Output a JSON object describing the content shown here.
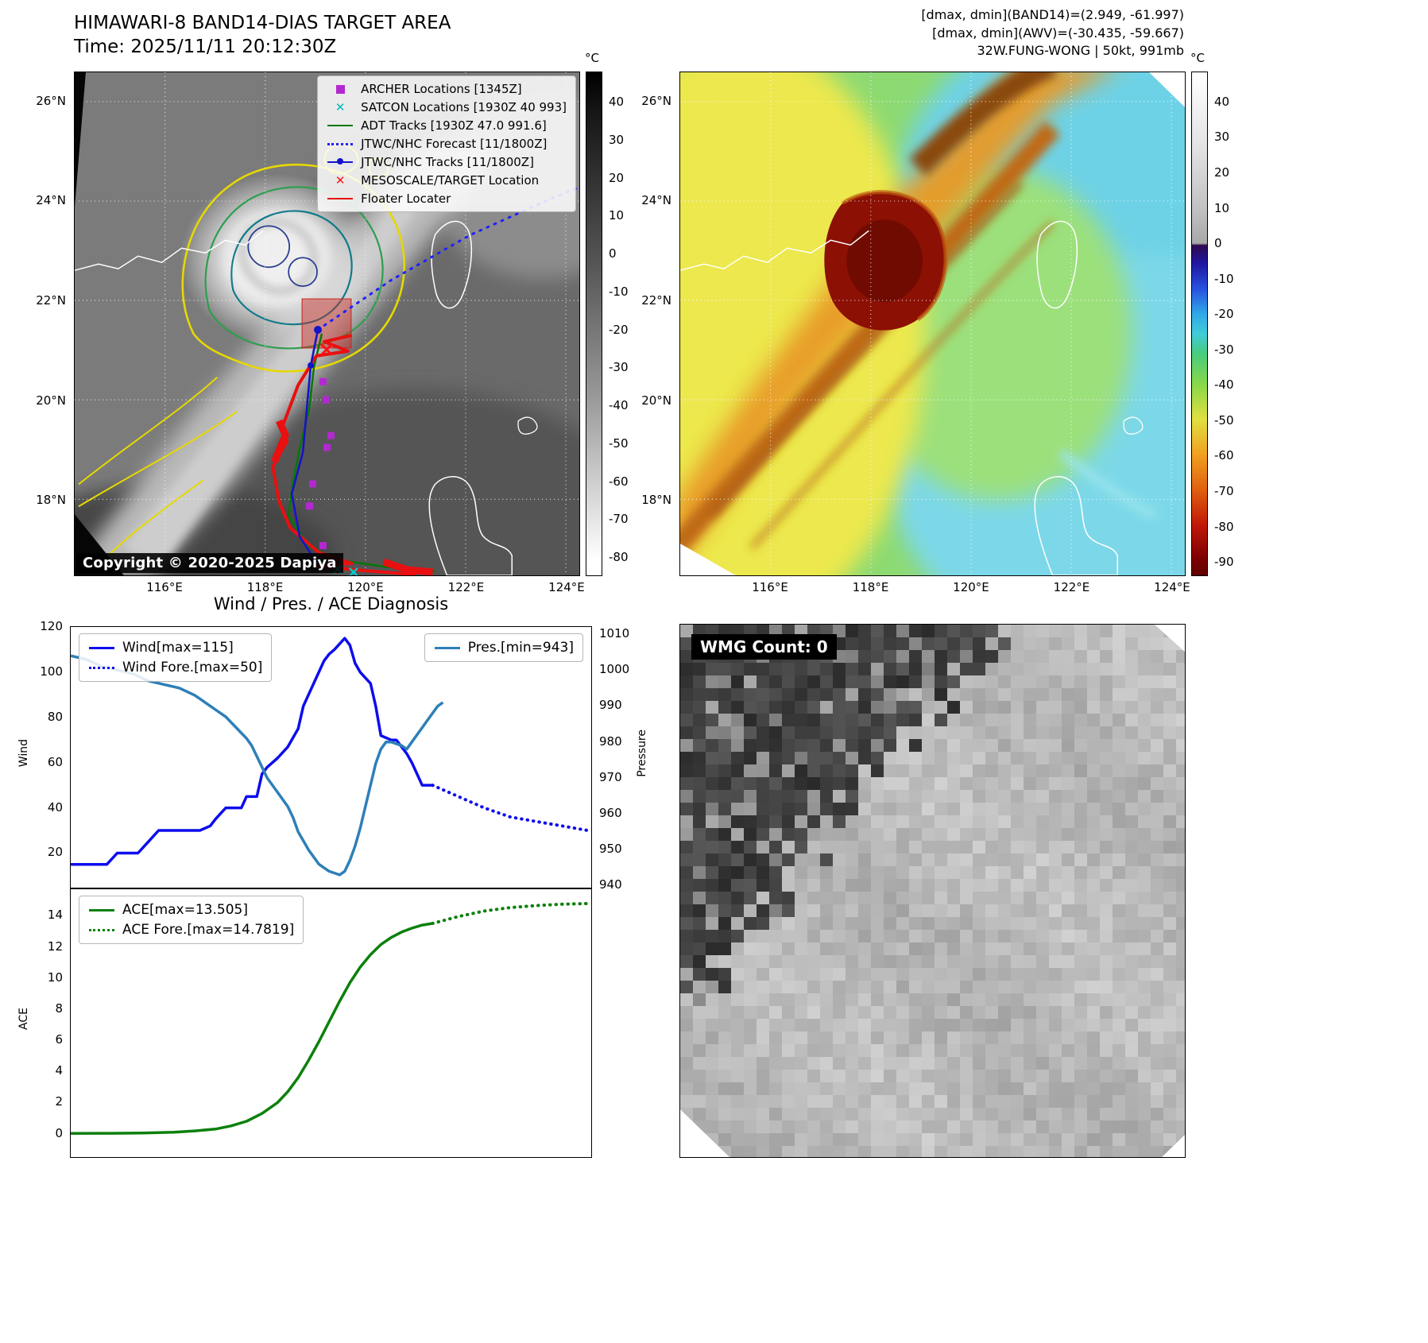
{
  "panel_tl": {
    "title": "HIMAWARI-8 BAND14-DIAS TARGET AREA",
    "subtitle": "Time: 2025/11/11 20:12:30Z",
    "copyright": "Copyright © 2020-2025 Dapiya",
    "colorbar": {
      "unit": "°C",
      "ticks": [
        "40",
        "30",
        "20",
        "10",
        "0",
        "-10",
        "-20",
        "-30",
        "-40",
        "-50",
        "-60",
        "-70",
        "-80"
      ]
    },
    "yticks": [
      "26°N",
      "24°N",
      "22°N",
      "20°N",
      "18°N"
    ],
    "xticks": [
      "116°E",
      "118°E",
      "120°E",
      "122°E",
      "124°E"
    ],
    "legend": [
      {
        "label": "ARCHER Locations [1345Z]",
        "marker": "square",
        "color": "#b428d2"
      },
      {
        "label": "SATCON Locations [1930Z 40 993]",
        "marker": "x",
        "color": "#00b8b8"
      },
      {
        "label": "ADT Tracks [1930Z 47.0 991.6]",
        "marker": "line",
        "color": "#067806"
      },
      {
        "label": "JTWC/NHC Forecast [11/1800Z]",
        "marker": "dotted-line",
        "color": "#2020ff"
      },
      {
        "label": "JTWC/NHC Tracks [11/1800Z]",
        "marker": "line-dot",
        "color": "#1414c8"
      },
      {
        "label": "MESOSCALE/TARGET Location",
        "marker": "x",
        "color": "#ff1010"
      },
      {
        "label": "Floater Locater",
        "marker": "line",
        "color": "#e81010"
      }
    ]
  },
  "panel_tr": {
    "header_lines": [
      "[dmax, dmin](BAND14)=(2.949, -61.997)",
      "[dmax, dmin](AWV)=(-30.435, -59.667)",
      "32W.FUNG-WONG | 50kt, 991mb"
    ],
    "colorbar": {
      "unit": "°C",
      "ticks": [
        "40",
        "30",
        "20",
        "10",
        "0",
        "-10",
        "-20",
        "-30",
        "-40",
        "-50",
        "-60",
        "-70",
        "-80",
        "-90"
      ]
    },
    "yticks": [
      "26°N",
      "24°N",
      "22°N",
      "20°N",
      "18°N"
    ],
    "xticks": [
      "116°E",
      "118°E",
      "120°E",
      "122°E",
      "124°E"
    ]
  },
  "panel_br": {
    "badge": "WMG Count: 0"
  },
  "chart_data": [
    {
      "type": "line",
      "title": "Wind / Pres. / ACE Diagnosis",
      "xlabel": "",
      "ylabel_left": "Wind",
      "ylabel_right": "Pressure",
      "xlim": [
        0,
        101
      ],
      "ylim_left": [
        4,
        120
      ],
      "ylim_right": [
        939,
        1012
      ],
      "grid": false,
      "yticks_left": [
        "120",
        "100",
        "80",
        "60",
        "40",
        "20"
      ],
      "yticks_right": [
        "1010",
        "1000",
        "990",
        "980",
        "970",
        "960",
        "950",
        "940"
      ],
      "series": [
        {
          "name": "Wind[max=115]",
          "color": "#0d0dee",
          "style": "solid",
          "axis": "left",
          "lw": 3.5,
          "x": [
            0,
            4,
            7,
            9,
            13,
            15,
            17,
            25,
            27,
            28,
            30,
            33,
            34,
            36,
            37,
            38,
            40,
            42,
            44,
            45,
            46,
            47,
            48,
            49,
            50,
            51,
            53,
            54,
            55,
            56,
            58,
            59,
            60,
            62,
            63,
            65,
            66,
            68,
            70
          ],
          "y": [
            15,
            15,
            15,
            20,
            20,
            25,
            30,
            30,
            32,
            35,
            40,
            40,
            45,
            45,
            55,
            58,
            62,
            67,
            75,
            85,
            90,
            95,
            100,
            105,
            108,
            110,
            115,
            112,
            104,
            100,
            95,
            85,
            72,
            70,
            70,
            64,
            60,
            50,
            50
          ]
        },
        {
          "name": "Wind Fore.[max=50]",
          "color": "#0d0dee",
          "style": "dotted",
          "axis": "left",
          "lw": 4,
          "x": [
            70,
            75,
            80,
            85,
            90,
            95,
            100
          ],
          "y": [
            50,
            45,
            40,
            36,
            34,
            32,
            30
          ]
        },
        {
          "name": "Pres.[min=943]",
          "color": "#2e7fb8",
          "style": "solid",
          "axis": "right",
          "lw": 3.5,
          "x": [
            0,
            3,
            6,
            9,
            12,
            15,
            18,
            21,
            24,
            26,
            28,
            30,
            32,
            34,
            35,
            36,
            37,
            38,
            40,
            42,
            43,
            44,
            46,
            48,
            50,
            52,
            53,
            54,
            55,
            56,
            57,
            58,
            59,
            60,
            61,
            62,
            64,
            65,
            66,
            68,
            69,
            70,
            71,
            72
          ],
          "y": [
            1004,
            1003,
            1001,
            1000,
            999,
            997,
            996,
            995,
            993,
            991,
            989,
            987,
            984,
            981,
            979,
            976,
            973,
            970,
            966,
            962,
            959,
            955,
            950,
            946,
            944,
            943,
            944,
            947,
            951,
            956,
            962,
            968,
            974,
            978,
            980,
            980,
            979,
            978,
            980,
            984,
            986,
            988,
            990,
            991
          ]
        }
      ]
    },
    {
      "type": "line",
      "xlabel": "",
      "ylabel_left": "ACE",
      "xlim": [
        0,
        101
      ],
      "ylim_left": [
        -1.6,
        15.7
      ],
      "grid": false,
      "yticks_left": [
        "14",
        "12",
        "10",
        "8",
        "6",
        "4",
        "2",
        "0"
      ],
      "series": [
        {
          "name": "ACE[max=13.505]",
          "color": "#0c800c",
          "style": "solid",
          "axis": "left",
          "lw": 3.5,
          "x": [
            0,
            8,
            14,
            20,
            24,
            28,
            31,
            34,
            37,
            40,
            42,
            44,
            46,
            48,
            50,
            52,
            54,
            56,
            58,
            60,
            62,
            64,
            66,
            68,
            70
          ],
          "y": [
            0.02,
            0.03,
            0.05,
            0.1,
            0.18,
            0.3,
            0.5,
            0.8,
            1.3,
            2.0,
            2.7,
            3.6,
            4.7,
            5.9,
            7.2,
            8.5,
            9.7,
            10.7,
            11.5,
            12.15,
            12.6,
            12.95,
            13.2,
            13.4,
            13.505
          ]
        },
        {
          "name": "ACE Fore.[max=14.7819]",
          "color": "#0c800c",
          "style": "dotted",
          "axis": "left",
          "lw": 4,
          "x": [
            70,
            75,
            80,
            85,
            90,
            95,
            100
          ],
          "y": [
            13.505,
            13.95,
            14.3,
            14.52,
            14.65,
            14.74,
            14.7819
          ]
        }
      ]
    }
  ]
}
